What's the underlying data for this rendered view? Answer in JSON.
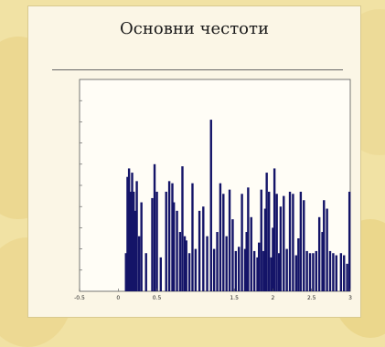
{
  "slide": {
    "title": "Основни честоти",
    "subtitle": ""
  },
  "chart_data": {
    "type": "bar",
    "title": "",
    "xlabel": "",
    "ylabel": "",
    "xlim": [
      -0.5,
      3.0
    ],
    "ylim": [
      0,
      1000
    ],
    "x_ticks": [
      -0.5,
      0,
      0.5,
      1.5,
      2,
      2.5,
      3
    ],
    "x_tick_labels": [
      "-0.5",
      "0",
      "0.5",
      "1.5",
      "2",
      "2.5",
      "3"
    ],
    "y_ticks": [
      100,
      200,
      300,
      400,
      500,
      600,
      700,
      800,
      900
    ],
    "bar_color": "#141468",
    "x": [
      0.1,
      0.12,
      0.14,
      0.16,
      0.18,
      0.2,
      0.22,
      0.24,
      0.27,
      0.3,
      0.36,
      0.44,
      0.47,
      0.5,
      0.55,
      0.62,
      0.66,
      0.7,
      0.72,
      0.76,
      0.8,
      0.83,
      0.86,
      0.88,
      0.92,
      0.96,
      1.0,
      1.05,
      1.1,
      1.15,
      1.2,
      1.24,
      1.28,
      1.32,
      1.36,
      1.4,
      1.44,
      1.48,
      1.52,
      1.56,
      1.6,
      1.64,
      1.66,
      1.68,
      1.72,
      1.76,
      1.8,
      1.82,
      1.85,
      1.88,
      1.9,
      1.92,
      1.95,
      1.98,
      2.0,
      2.02,
      2.05,
      2.08,
      2.1,
      2.14,
      2.18,
      2.22,
      2.26,
      2.3,
      2.33,
      2.36,
      2.4,
      2.44,
      2.48,
      2.52,
      2.56,
      2.6,
      2.64,
      2.66,
      2.7,
      2.74,
      2.78,
      2.82,
      2.88,
      2.92,
      2.96,
      2.99
    ],
    "values": [
      180,
      540,
      580,
      470,
      560,
      470,
      380,
      520,
      260,
      420,
      180,
      440,
      600,
      470,
      160,
      470,
      520,
      510,
      420,
      380,
      280,
      590,
      260,
      240,
      180,
      510,
      200,
      380,
      400,
      260,
      810,
      200,
      280,
      510,
      460,
      260,
      480,
      340,
      190,
      210,
      460,
      200,
      280,
      490,
      350,
      190,
      160,
      230,
      480,
      190,
      390,
      560,
      470,
      160,
      300,
      580,
      460,
      180,
      400,
      450,
      200,
      470,
      460,
      170,
      250,
      470,
      430,
      190,
      180,
      180,
      190,
      350,
      280,
      430,
      390,
      190,
      180,
      170,
      180,
      170,
      130,
      470
    ]
  }
}
